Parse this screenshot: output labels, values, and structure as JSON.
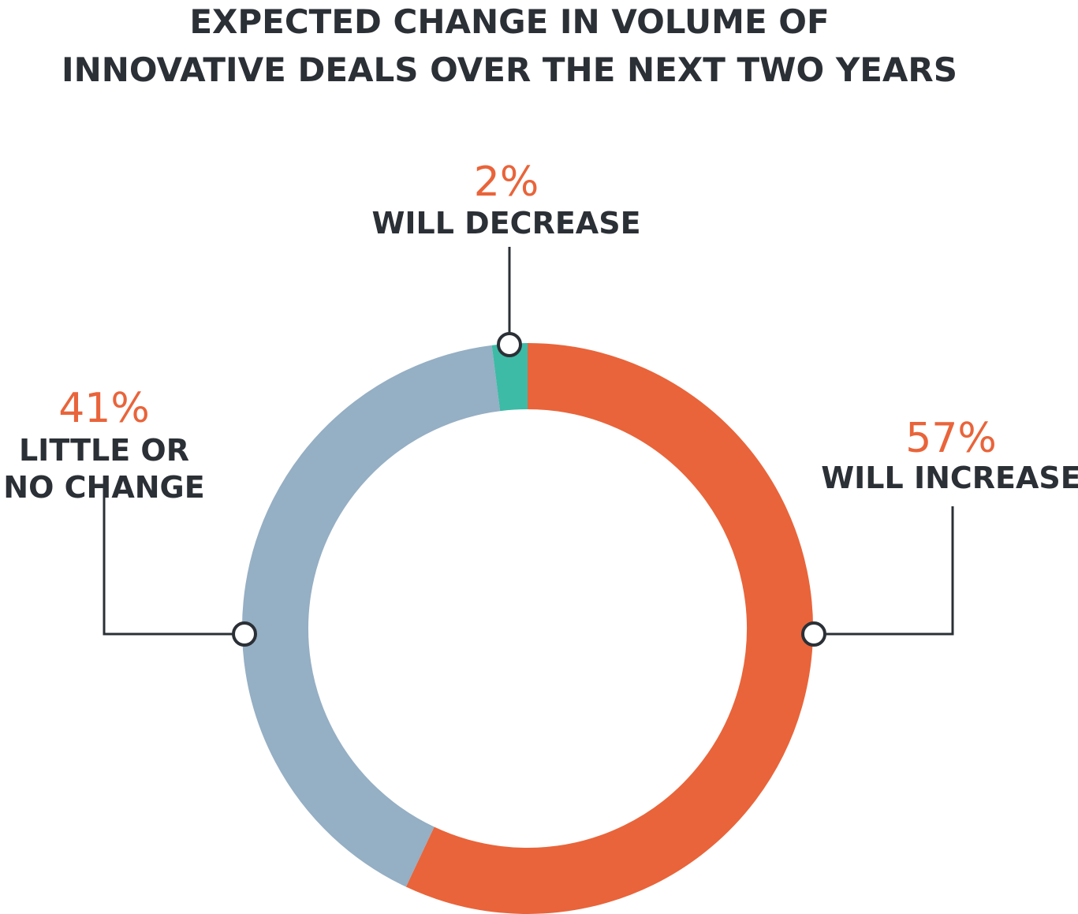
{
  "chart_data": {
    "type": "pie",
    "variant": "donut",
    "title": "EXPECTED CHANGE IN VOLUME OF INNOVATIVE DEALS OVER THE NEXT TWO YEARS",
    "title_lines": [
      "EXPECTED CHANGE IN VOLUME OF",
      "INNOVATIVE DEALS OVER THE NEXT TWO YEARS"
    ],
    "unit": "%",
    "slices": [
      {
        "key": "will-increase",
        "value": 57,
        "value_label": "57%",
        "label_lines": [
          "WILL INCREASE"
        ],
        "color": "#e9643a"
      },
      {
        "key": "little-or-no-change",
        "value": 41,
        "value_label": "41%",
        "label_lines": [
          "LITTLE OR",
          "NO CHANGE"
        ],
        "color": "#95afc4"
      },
      {
        "key": "will-decrease",
        "value": 2,
        "value_label": "2%",
        "label_lines": [
          "WILL DECREASE"
        ],
        "color": "#3dbba6"
      }
    ],
    "start": "top",
    "direction": "clockwise",
    "legend": "none"
  }
}
